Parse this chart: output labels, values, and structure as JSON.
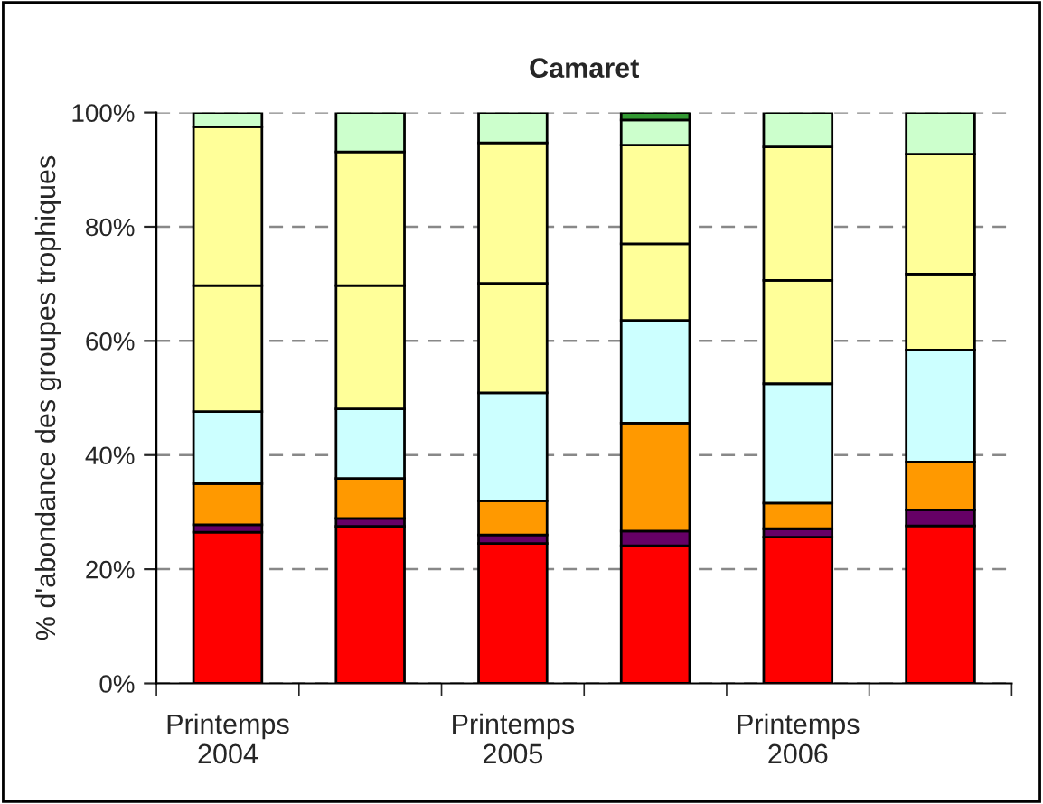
{
  "chart_data": {
    "type": "bar",
    "stacked": true,
    "title": "Camaret",
    "ylabel": "% d'abondance des groupes trophiques",
    "categories": [
      "Printemps\n2004",
      null,
      "Printemps\n2005",
      null,
      "Printemps\n2006",
      null
    ],
    "series": [
      {
        "color": "#ff0000",
        "values": [
          26.5,
          27.5,
          24.5,
          24.1,
          25.6,
          27.6
        ]
      },
      {
        "color": "#660066",
        "values": [
          1.3,
          1.4,
          1.5,
          2.6,
          1.5,
          2.8
        ]
      },
      {
        "color": "#ff9900",
        "values": [
          7.2,
          7.0,
          6.0,
          18.9,
          4.5,
          8.4
        ]
      },
      {
        "color": "#ccffff",
        "values": [
          12.6,
          12.2,
          18.9,
          18.0,
          20.9,
          19.6
        ]
      },
      {
        "color": "#ffff99",
        "values": [
          22.1,
          21.6,
          19.2,
          13.4,
          18.1,
          13.3
        ]
      },
      {
        "color": "#ffff99",
        "values": [
          27.8,
          23.4,
          24.6,
          17.3,
          23.4,
          21.0
        ]
      },
      {
        "color": "#ccffcc",
        "values": [
          2.5,
          6.9,
          5.3,
          4.4,
          6.0,
          7.3
        ]
      },
      {
        "color": "#339933",
        "values": [
          null,
          null,
          null,
          1.3,
          null,
          null
        ]
      }
    ],
    "ylim": [
      0,
      100
    ],
    "yticks": [
      {
        "value": 0,
        "label": "0%"
      },
      {
        "value": 20,
        "label": "20%"
      },
      {
        "value": 40,
        "label": "40%"
      },
      {
        "value": 60,
        "label": "60%"
      },
      {
        "value": 80,
        "label": "80%"
      },
      {
        "value": 100,
        "label": "100%"
      }
    ],
    "grid": "y",
    "legend": false
  }
}
